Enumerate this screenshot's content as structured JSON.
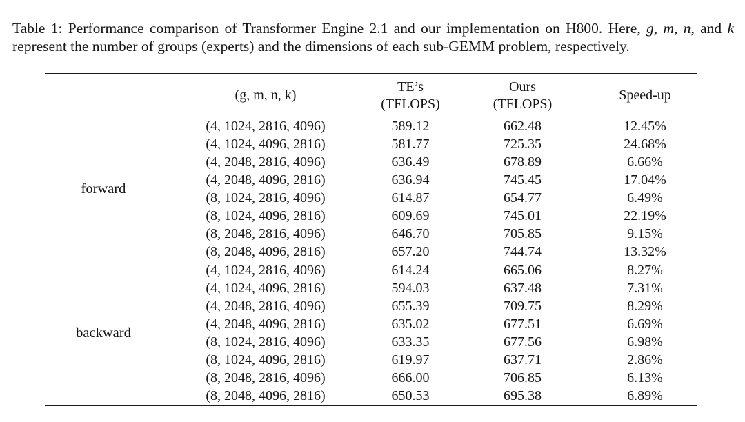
{
  "caption": {
    "runs": [
      {
        "t": "Table 1: Performance comparison of Transformer Engine 2.1 and our implementation on H800. Here, "
      },
      {
        "t": "g",
        "i": true
      },
      {
        "t": ", "
      },
      {
        "t": "m",
        "i": true
      },
      {
        "t": ", "
      },
      {
        "t": "n",
        "i": true
      },
      {
        "t": ", and "
      },
      {
        "t": "k",
        "i": true
      },
      {
        "t": " represent the number of groups (experts) and the dimensions of each sub-GEMM problem, respectively."
      }
    ]
  },
  "table": {
    "headers": {
      "group": "",
      "problem": "(g, m, n, k)",
      "te": {
        "line1": "TE’s",
        "line2": "(TFLOPS)"
      },
      "ours": {
        "line1": "Ours",
        "line2": "(TFLOPS)"
      },
      "speedup": "Speed-up"
    },
    "groups": [
      {
        "label": "forward",
        "rows": [
          {
            "gmnk": "(4, 1024, 2816, 4096)",
            "te": "589.12",
            "ours": "662.48",
            "speedup": "12.45%"
          },
          {
            "gmnk": "(4, 1024, 4096, 2816)",
            "te": "581.77",
            "ours": "725.35",
            "speedup": "24.68%"
          },
          {
            "gmnk": "(4, 2048, 2816, 4096)",
            "te": "636.49",
            "ours": "678.89",
            "speedup": "6.66%"
          },
          {
            "gmnk": "(4, 2048, 4096, 2816)",
            "te": "636.94",
            "ours": "745.45",
            "speedup": "17.04%"
          },
          {
            "gmnk": "(8, 1024, 2816, 4096)",
            "te": "614.87",
            "ours": "654.77",
            "speedup": "6.49%"
          },
          {
            "gmnk": "(8, 1024, 4096, 2816)",
            "te": "609.69",
            "ours": "745.01",
            "speedup": "22.19%"
          },
          {
            "gmnk": "(8, 2048, 2816, 4096)",
            "te": "646.70",
            "ours": "705.85",
            "speedup": "9.15%"
          },
          {
            "gmnk": "(8, 2048, 4096, 2816)",
            "te": "657.20",
            "ours": "744.74",
            "speedup": "13.32%"
          }
        ]
      },
      {
        "label": "backward",
        "rows": [
          {
            "gmnk": "(4, 1024, 2816, 4096)",
            "te": "614.24",
            "ours": "665.06",
            "speedup": "8.27%"
          },
          {
            "gmnk": "(4, 1024, 4096, 2816)",
            "te": "594.03",
            "ours": "637.48",
            "speedup": "7.31%"
          },
          {
            "gmnk": "(4, 2048, 2816, 4096)",
            "te": "655.39",
            "ours": "709.75",
            "speedup": "8.29%"
          },
          {
            "gmnk": "(4, 2048, 4096, 2816)",
            "te": "635.02",
            "ours": "677.51",
            "speedup": "6.69%"
          },
          {
            "gmnk": "(8, 1024, 2816, 4096)",
            "te": "633.35",
            "ours": "677.56",
            "speedup": "6.98%"
          },
          {
            "gmnk": "(8, 1024, 4096, 2816)",
            "te": "619.97",
            "ours": "637.71",
            "speedup": "2.86%"
          },
          {
            "gmnk": "(8, 2048, 2816, 4096)",
            "te": "666.00",
            "ours": "706.85",
            "speedup": "6.13%"
          },
          {
            "gmnk": "(8, 2048, 4096, 2816)",
            "te": "650.53",
            "ours": "695.38",
            "speedup": "6.89%"
          }
        ]
      }
    ]
  },
  "colors": {
    "text": "#151515",
    "rule": "#1b1b1b",
    "background": "#ffffff"
  }
}
